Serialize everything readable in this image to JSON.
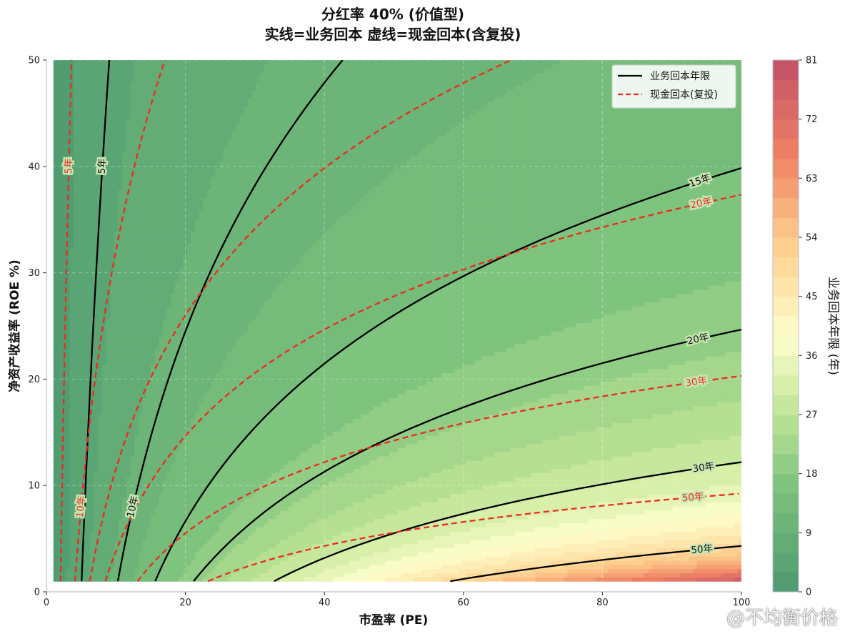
{
  "chart_data": {
    "type": "contour",
    "title_line1": "分红率 40% (价值型)",
    "title_line2": "实线=业务回本 虚线=现金回本(含复投)",
    "xlabel": "市盈率 (PE)",
    "ylabel": "净资产收益率 (ROE %)",
    "colorbar_label": "业务回本年限 (年)",
    "xlim": [
      0,
      100
    ],
    "ylim": [
      0,
      50
    ],
    "x_ticks": [
      "0",
      "20",
      "40",
      "60",
      "80",
      "100"
    ],
    "y_ticks": [
      "0",
      "10",
      "20",
      "30",
      "40",
      "50"
    ],
    "colorbar_ticks": [
      "0",
      "9",
      "18",
      "27",
      "36",
      "45",
      "54",
      "63",
      "72",
      "81"
    ],
    "colorbar_range": [
      0,
      81
    ],
    "fill_levels": [
      0,
      3,
      6,
      9,
      12,
      15,
      18,
      21,
      24,
      27,
      30,
      33,
      36,
      39,
      42,
      45,
      48,
      51,
      54,
      57,
      60,
      63,
      66,
      69,
      72,
      75,
      78,
      81
    ],
    "payout_ratio": 0.4,
    "data_x_range": [
      1,
      100
    ],
    "data_y_range": [
      1,
      50
    ],
    "business_contours": [
      {
        "years": 5,
        "label": "5年"
      },
      {
        "years": 10,
        "label": "10年"
      },
      {
        "years": 15,
        "label": "15年"
      },
      {
        "years": 20,
        "label": "20年"
      },
      {
        "years": 30,
        "label": "30年"
      },
      {
        "years": 50,
        "label": "50年"
      }
    ],
    "cash_contours": [
      {
        "years": 5,
        "label": "5年"
      },
      {
        "years": 10,
        "label": "10年"
      },
      {
        "years": 15,
        "label": ""
      },
      {
        "years": 20,
        "label": "20年"
      },
      {
        "years": 30,
        "label": "30年"
      },
      {
        "years": 50,
        "label": "50年"
      }
    ],
    "legend": [
      {
        "label": "业务回本年限",
        "style": "solid",
        "color": "#000000"
      },
      {
        "label": "现金回本(复投)",
        "style": "dashed",
        "color": "#ee2222"
      }
    ]
  },
  "watermark": "@不均衡价格"
}
